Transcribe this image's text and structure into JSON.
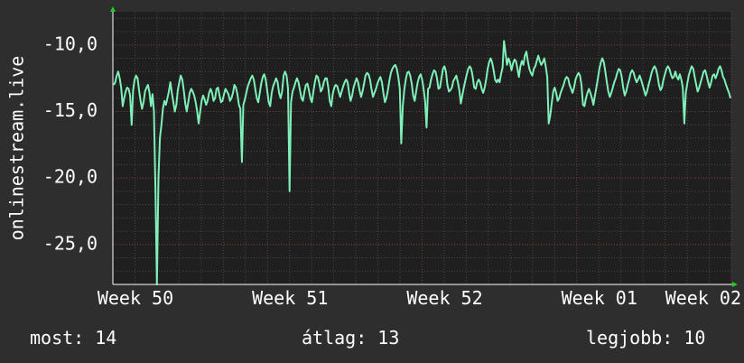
{
  "chart_data": {
    "type": "line",
    "ylabel": "onlinestream.live",
    "ylim": [
      -28,
      -7.5
    ],
    "y_ticks": [
      {
        "value": -10,
        "label": "-10,0"
      },
      {
        "value": -15,
        "label": "-15,0"
      },
      {
        "value": -20,
        "label": "-20,0"
      },
      {
        "value": -25,
        "label": "-25,0"
      }
    ],
    "x_ticks": [
      "Week 50",
      "Week 51",
      "Week 52",
      "Week 01",
      "Week 02"
    ],
    "grid": true,
    "series": [
      {
        "color": "#7ef0b8",
        "values": [
          -13,
          -12.8,
          -12.3,
          -12,
          -12.5,
          -13.2,
          -14.6,
          -14,
          -13.5,
          -13.2,
          -13.3,
          -13.8,
          -16,
          -13.4,
          -12.6,
          -12.3,
          -12.5,
          -13.4,
          -14.2,
          -14.8,
          -14.3,
          -13.5,
          -13.2,
          -13,
          -13.6,
          -14.6,
          -13.7,
          -15,
          -21,
          -28,
          -20,
          -17,
          -16,
          -14.8,
          -14.2,
          -14.5,
          -14,
          -13.5,
          -12.8,
          -13.6,
          -14.3,
          -15,
          -14.5,
          -13.4,
          -12.8,
          -12.3,
          -12.6,
          -13.4,
          -14.4,
          -15,
          -14.3,
          -13.6,
          -13.3,
          -13.5,
          -13.8,
          -14.3,
          -15,
          -15.9,
          -15,
          -14.2,
          -13.8,
          -14.1,
          -14.5,
          -14.2,
          -13.6,
          -13.3,
          -13.6,
          -14.2,
          -14,
          -13.3,
          -13.2,
          -13.8,
          -14.3,
          -14.2,
          -13.7,
          -13.3,
          -13.5,
          -13.7,
          -14.2,
          -14,
          -13.6,
          -13,
          -13.2,
          -13.7,
          -14.5,
          -14.8,
          -18.8,
          -14.5,
          -14.1,
          -13.6,
          -13.1,
          -12.8,
          -12.5,
          -12.3,
          -12.6,
          -13.3,
          -14,
          -14.3,
          -13.6,
          -12.9,
          -12.4,
          -12.2,
          -12.6,
          -13.4,
          -14.3,
          -14.6,
          -13.6,
          -13.1,
          -12.8,
          -12.5,
          -12.8,
          -13.6,
          -14,
          -13.5,
          -12.3,
          -12,
          -12.3,
          -13.3,
          -21,
          -14.3,
          -13.5,
          -13.2,
          -12.8,
          -12.5,
          -12.8,
          -13.4,
          -14,
          -14.2,
          -13.5,
          -13,
          -12.9,
          -13.4,
          -14,
          -14.3,
          -13.5,
          -12.8,
          -12.3,
          -12.4,
          -12.9,
          -13.5,
          -13.3,
          -12.8,
          -12.5,
          -12.5,
          -13.2,
          -14.2,
          -14.6,
          -13.7,
          -13.2,
          -13,
          -13.1,
          -13.5,
          -13.9,
          -13.5,
          -13.1,
          -12.8,
          -12.6,
          -12.8,
          -13.6,
          -14.2,
          -13.8,
          -13.2,
          -12.8,
          -12.5,
          -12.8,
          -13.4,
          -13.9,
          -13.5,
          -12.9,
          -12.3,
          -12.1,
          -12.2,
          -12.6,
          -13.3,
          -13.9,
          -13.6,
          -13.3,
          -12.9,
          -12.6,
          -12.4,
          -12.8,
          -13.6,
          -14.3,
          -14,
          -13.4,
          -12.7,
          -12.1,
          -11.8,
          -11.6,
          -11.5,
          -11.8,
          -12.4,
          -13.3,
          -17.4,
          -14.6,
          -13.4,
          -12.6,
          -12.1,
          -12,
          -12.3,
          -12.9,
          -13.8,
          -14.2,
          -13.5,
          -12.8,
          -12.4,
          -12.2,
          -12.6,
          -13.3,
          -14.2,
          -16.2,
          -13.3,
          -13.2,
          -12.6,
          -12.2,
          -11.9,
          -12,
          -12.5,
          -13.3,
          -13.2,
          -12.5,
          -11.8,
          -11.6,
          -12,
          -13,
          -13.5,
          -13.4,
          -13.2,
          -12.7,
          -12.5,
          -12.3,
          -12.8,
          -13.4,
          -14.4,
          -13.8,
          -13.2,
          -12.7,
          -12.2,
          -11.8,
          -11.6,
          -11.8,
          -12.4,
          -13.2,
          -13.3,
          -12.8,
          -12.6,
          -12.8,
          -13.3,
          -13.6,
          -13.2,
          -12.6,
          -11.8,
          -11.3,
          -11,
          -11.3,
          -11.9,
          -12.6,
          -12.8,
          -12.6,
          -12.8,
          -12.2,
          -11.7,
          -9.7,
          -10.6,
          -11.5,
          -11,
          -11.3,
          -11.9,
          -11.4,
          -11.1,
          -11.2,
          -11.8,
          -12.4,
          -11.6,
          -11.2,
          -11.5,
          -10.8,
          -10.5,
          -11.2,
          -11.8,
          -12.1,
          -12.3,
          -11.8,
          -11.6,
          -11.2,
          -10.8,
          -11.2,
          -11.5,
          -11.3,
          -11,
          -11.6,
          -12.4,
          -15.9,
          -15.3,
          -14.4,
          -13.5,
          -13.2,
          -13.6,
          -14.2,
          -14,
          -13.6,
          -13.3,
          -13,
          -12.6,
          -12.4,
          -12.5,
          -13,
          -13.3,
          -13.6,
          -13.2,
          -12.6,
          -12.3,
          -12.1,
          -12.3,
          -13,
          -14.5,
          -14.6,
          -14,
          -13.6,
          -13.3,
          -13.6,
          -14,
          -14.5,
          -13.8,
          -13.2,
          -12.5,
          -11.8,
          -11.3,
          -11,
          -11.3,
          -12,
          -12.8,
          -13.5,
          -13.9,
          -13.6,
          -13.2,
          -12.8,
          -12.5,
          -12.1,
          -11.8,
          -11.9,
          -12.4,
          -13.2,
          -13.8,
          -13.5,
          -13,
          -12.6,
          -12.1,
          -11.9,
          -12.1,
          -12.5,
          -12.8,
          -12.6,
          -12.3,
          -12.6,
          -13,
          -13.4,
          -13.8,
          -13.5,
          -13,
          -12.6,
          -12.1,
          -11.8,
          -11.6,
          -11.8,
          -12.3,
          -13,
          -13.4,
          -13.2,
          -12.6,
          -12.2,
          -11.8,
          -11.6,
          -11.8,
          -12.2,
          -12.5,
          -12.4,
          -12,
          -12.4,
          -12.6,
          -12.2,
          -12.6,
          -13.2,
          -15.9,
          -13.6,
          -12.9,
          -12.3,
          -11.9,
          -11.6,
          -11.8,
          -12.4,
          -13,
          -13.5,
          -13.2,
          -12.8,
          -12.4,
          -12,
          -11.9,
          -12.3,
          -12.8,
          -13.2,
          -12.8,
          -12.3,
          -12.2,
          -12.5,
          -12.2,
          -11.8,
          -11.6,
          -11.9,
          -12.4,
          -12.6,
          -13,
          -13.3,
          -13.6,
          -14
        ]
      }
    ],
    "stats": [
      {
        "label": "most:",
        "value": "14"
      },
      {
        "label": "átlag:",
        "value": "13"
      },
      {
        "label": "legjobb:",
        "value": "10"
      }
    ]
  }
}
